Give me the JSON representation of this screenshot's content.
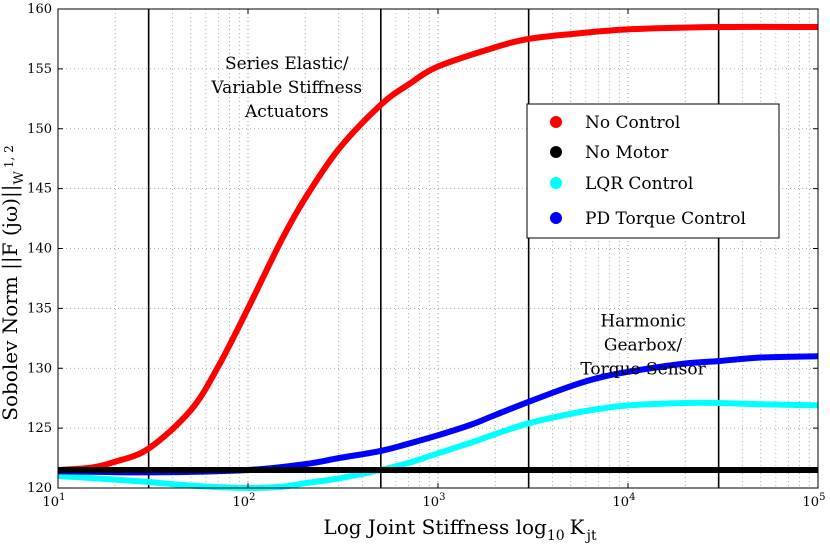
{
  "chart_data": {
    "type": "line",
    "xscale": "log",
    "xlim": [
      10,
      100000
    ],
    "ylim": [
      120,
      160
    ],
    "grid": true,
    "xlabel": {
      "main": "Log Joint Stiffness log",
      "sub1": "10",
      "mid": "K",
      "sub2": "jt"
    },
    "ylabel": {
      "main": "Sobolev Norm ||F (jω)||",
      "sub": "W",
      "sup": "1, 2"
    },
    "xticks": [
      {
        "value": 10,
        "base": "10",
        "exp": "1"
      },
      {
        "value": 100,
        "base": "10",
        "exp": "2"
      },
      {
        "value": 1000,
        "base": "10",
        "exp": "3"
      },
      {
        "value": 10000,
        "base": "10",
        "exp": "4"
      },
      {
        "value": 100000,
        "base": "10",
        "exp": "5"
      }
    ],
    "yticks": [
      120,
      125,
      130,
      135,
      140,
      145,
      150,
      155,
      160
    ],
    "legend_position": "top-right",
    "vertical_lines": [
      30,
      500,
      3000,
      30000
    ],
    "annotations": [
      {
        "lines": [
          "Series Elastic/",
          "Variable Stiffness",
          "Actuators"
        ],
        "x": 160,
        "y": 155
      },
      {
        "lines": [
          "Harmonic",
          "Gearbox/",
          "Torque Sensor"
        ],
        "x": 12000,
        "y": 133.5
      }
    ],
    "series": [
      {
        "name": "No Control",
        "color": "#ff0000",
        "x": [
          10,
          15,
          20,
          30,
          50,
          70,
          100,
          150,
          200,
          300,
          500,
          700,
          1000,
          2000,
          3000,
          5000,
          10000,
          30000,
          100000
        ],
        "y": [
          121.5,
          121.7,
          122.2,
          123.3,
          126.5,
          130.2,
          135.0,
          140.7,
          144.2,
          148.3,
          152.0,
          153.7,
          155.2,
          156.8,
          157.5,
          157.9,
          158.3,
          158.5,
          158.5
        ]
      },
      {
        "name": "No Motor",
        "color": "#000000",
        "x": [
          10,
          100,
          1000,
          10000,
          100000
        ],
        "y": [
          121.5,
          121.5,
          121.5,
          121.5,
          121.5
        ]
      },
      {
        "name": "LQR Control",
        "color": "#00ffff",
        "x": [
          10,
          20,
          30,
          50,
          100,
          150,
          200,
          300,
          500,
          700,
          1000,
          1500,
          2000,
          3000,
          5000,
          7000,
          10000,
          20000,
          30000,
          50000,
          100000
        ],
        "y": [
          121.0,
          120.7,
          120.5,
          120.2,
          120.0,
          120.1,
          120.4,
          120.8,
          121.5,
          122.1,
          122.9,
          123.8,
          124.5,
          125.4,
          126.2,
          126.6,
          126.9,
          127.1,
          127.1,
          127.0,
          126.9
        ]
      },
      {
        "name": "PD Torque Control",
        "color": "#0000ff",
        "x": [
          10,
          30,
          100,
          200,
          300,
          500,
          700,
          1000,
          1500,
          2000,
          3000,
          5000,
          7000,
          10000,
          20000,
          30000,
          50000,
          100000
        ],
        "y": [
          121.4,
          121.3,
          121.5,
          122.0,
          122.5,
          123.1,
          123.7,
          124.4,
          125.3,
          126.1,
          127.2,
          128.5,
          129.2,
          129.7,
          130.4,
          130.6,
          130.9,
          131.0
        ]
      }
    ]
  }
}
